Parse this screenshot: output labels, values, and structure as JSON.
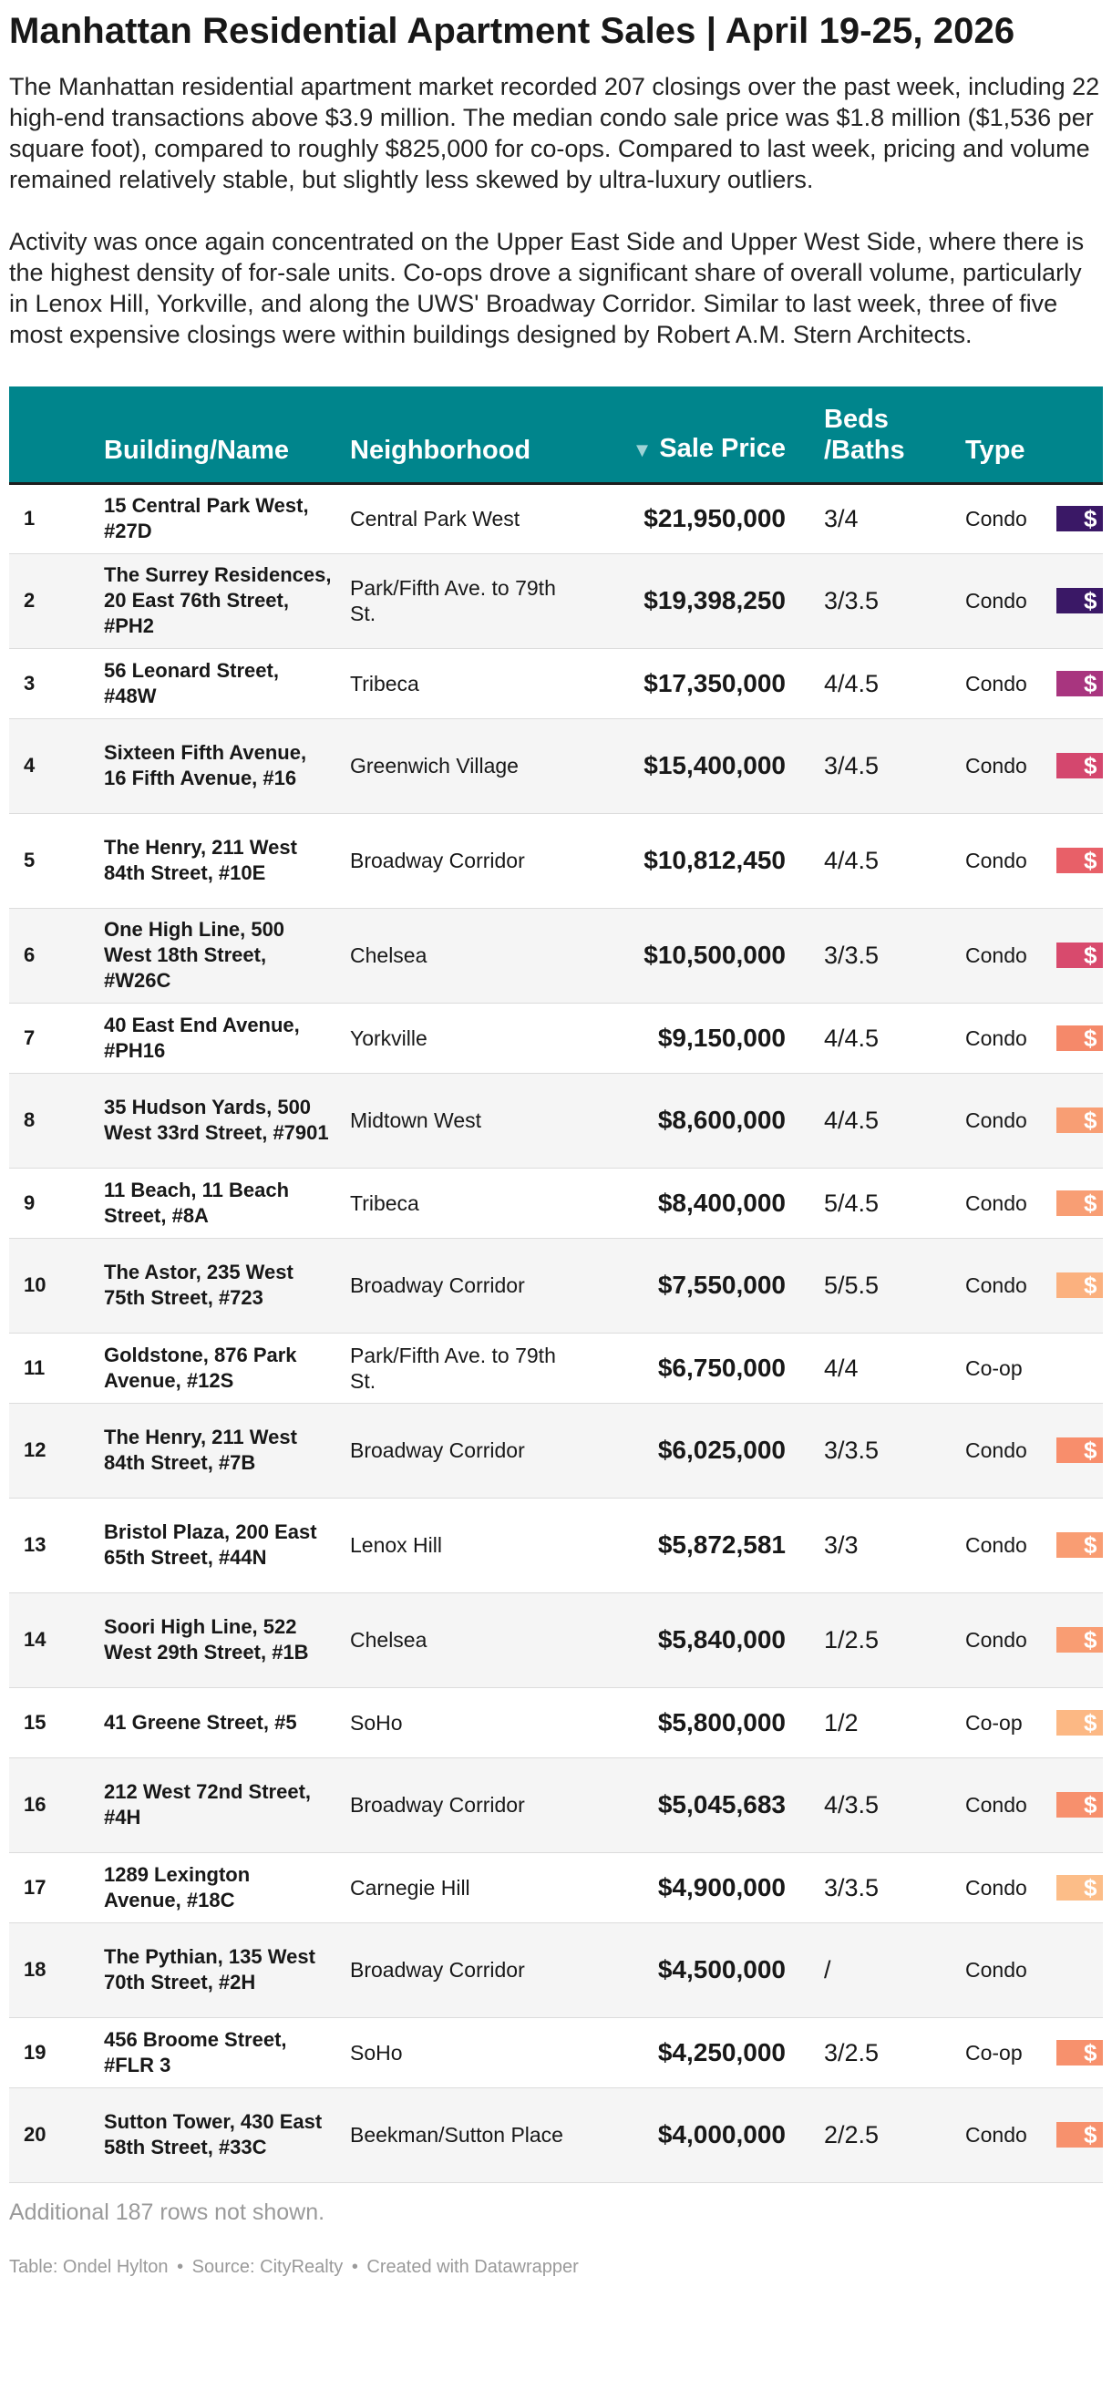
{
  "title": "Manhattan Residential Apartment Sales | April 19-25, 2026",
  "intro": [
    "The Manhattan residential apartment market recorded 207 closings over the past week, including 22 high-end transactions above $3.9 million. The median condo sale price was $1.8 million ($1,536 per square foot), compared to roughly $825,000 for co-ops. Compared to last week, pricing and volume remained relatively stable, but slightly less skewed by ultra-luxury outliers.",
    "Activity was once again concentrated on the Upper East Side and Upper West Side, where there is the highest density of for-sale units. Co-ops drove a significant share of overall volume, particularly in Lenox Hill, Yorkville, and along the UWS' Broadway Corridor. Similar to last week, three of five most expensive closings were within buildings designed by Robert A.M. Stern Architects."
  ],
  "table": {
    "headers": {
      "building": "Building/Name",
      "neighborhood": "Neighborhood",
      "sort_arrow": "▼",
      "price": "Sale Price",
      "beds": "Beds /Baths",
      "type": "Type"
    },
    "rows": [
      {
        "rank": "1",
        "building": "15 Central Park West, #27D",
        "neighborhood": "Central Park West",
        "price": "$21,950,000",
        "beds": "3/4",
        "type": "Condo",
        "swatch": "$",
        "swatch_color": "#3a1866"
      },
      {
        "rank": "2",
        "building": "The Surrey Residences, 20 East 76th Street, #PH2",
        "neighborhood": "Park/Fifth Ave. to 79th St.",
        "price": "$19,398,250",
        "beds": "3/3.5",
        "type": "Condo",
        "swatch": "$",
        "swatch_color": "#3a1866"
      },
      {
        "rank": "3",
        "building": "56 Leonard Street, #48W",
        "neighborhood": "Tribeca",
        "price": "$17,350,000",
        "beds": "4/4.5",
        "type": "Condo",
        "swatch": "$",
        "swatch_color": "#a8357f"
      },
      {
        "rank": "4",
        "building": "Sixteen Fifth Avenue, 16 Fifth Avenue, #16",
        "neighborhood": "Greenwich Village",
        "price": "$15,400,000",
        "beds": "3/4.5",
        "type": "Condo",
        "swatch": "$",
        "swatch_color": "#d4476e"
      },
      {
        "rank": "5",
        "building": "The Henry, 211 West 84th Street, #10E",
        "neighborhood": "Broadway Corridor",
        "price": "$10,812,450",
        "beds": "4/4.5",
        "type": "Condo",
        "swatch": "$",
        "swatch_color": "#e86068"
      },
      {
        "rank": "6",
        "building": "One High Line, 500 West 18th Street, #W26C",
        "neighborhood": "Chelsea",
        "price": "$10,500,000",
        "beds": "3/3.5",
        "type": "Condo",
        "swatch": "$",
        "swatch_color": "#d84a6d"
      },
      {
        "rank": "7",
        "building": "40 East End Avenue, #PH16",
        "neighborhood": "Yorkville",
        "price": "$9,150,000",
        "beds": "4/4.5",
        "type": "Condo",
        "swatch": "$",
        "swatch_color": "#f5896a"
      },
      {
        "rank": "8",
        "building": "35 Hudson Yards, 500 West 33rd Street, #7901",
        "neighborhood": "Midtown West",
        "price": "$8,600,000",
        "beds": "4/4.5",
        "type": "Condo",
        "swatch": "$",
        "swatch_color": "#f89e74"
      },
      {
        "rank": "9",
        "building": "11 Beach, 11 Beach Street, #8A",
        "neighborhood": "Tribeca",
        "price": "$8,400,000",
        "beds": "5/4.5",
        "type": "Condo",
        "swatch": "$",
        "swatch_color": "#f89e74"
      },
      {
        "rank": "10",
        "building": "The Astor, 235 West 75th Street, #723",
        "neighborhood": "Broadway Corridor",
        "price": "$7,550,000",
        "beds": "5/5.5",
        "type": "Condo",
        "swatch": "$",
        "swatch_color": "#fbb17f"
      },
      {
        "rank": "11",
        "building": "Goldstone, 876 Park Avenue, #12S",
        "neighborhood": "Park/Fifth Ave. to 79th St.",
        "price": "$6,750,000",
        "beds": "4/4",
        "type": "Co-op",
        "swatch": "",
        "swatch_color": ""
      },
      {
        "rank": "12",
        "building": "The Henry, 211 West 84th Street, #7B",
        "neighborhood": "Broadway Corridor",
        "price": "$6,025,000",
        "beds": "3/3.5",
        "type": "Condo",
        "swatch": "$",
        "swatch_color": "#f88e6c"
      },
      {
        "rank": "13",
        "building": "Bristol Plaza, 200 East 65th Street, #44N",
        "neighborhood": "Lenox Hill",
        "price": "$5,872,581",
        "beds": "3/3",
        "type": "Condo",
        "swatch": "$",
        "swatch_color": "#f99d73"
      },
      {
        "rank": "14",
        "building": "Soori High Line, 522 West 29th Street, #1B",
        "neighborhood": "Chelsea",
        "price": "$5,840,000",
        "beds": "1/2.5",
        "type": "Condo",
        "swatch": "$",
        "swatch_color": "#f99d73"
      },
      {
        "rank": "15",
        "building": "41 Greene Street, #5",
        "neighborhood": "SoHo",
        "price": "$5,800,000",
        "beds": "1/2",
        "type": "Co-op",
        "swatch": "$",
        "swatch_color": "#fcb884"
      },
      {
        "rank": "16",
        "building": "212 West 72nd Street, #4H",
        "neighborhood": "Broadway Corridor",
        "price": "$5,045,683",
        "beds": "4/3.5",
        "type": "Condo",
        "swatch": "$",
        "swatch_color": "#f7906d"
      },
      {
        "rank": "17",
        "building": "1289 Lexington Avenue, #18C",
        "neighborhood": "Carnegie Hill",
        "price": "$4,900,000",
        "beds": "3/3.5",
        "type": "Condo",
        "swatch": "$",
        "swatch_color": "#fcbd88"
      },
      {
        "rank": "18",
        "building": "The Pythian, 135 West 70th Street, #2H",
        "neighborhood": "Broadway Corridor",
        "price": "$4,500,000",
        "beds": "/",
        "type": "Condo",
        "swatch": "",
        "swatch_color": ""
      },
      {
        "rank": "19",
        "building": "456 Broome Street, #FLR 3",
        "neighborhood": "SoHo",
        "price": "$4,250,000",
        "beds": "3/2.5",
        "type": "Co-op",
        "swatch": "$",
        "swatch_color": "#f7916d"
      },
      {
        "rank": "20",
        "building": "Sutton Tower, 430 East 58th Street, #33C",
        "neighborhood": "Beekman/Sutton Place",
        "price": "$4,000,000",
        "beds": "2/2.5",
        "type": "Condo",
        "swatch": "$",
        "swatch_color": "#f7916d"
      }
    ]
  },
  "more_rows_note": "Additional 187 rows not shown.",
  "credit": {
    "table_by": "Table: Ondel Hylton",
    "source": "Source: CityRealty",
    "tool": "Created with Datawrapper"
  }
}
